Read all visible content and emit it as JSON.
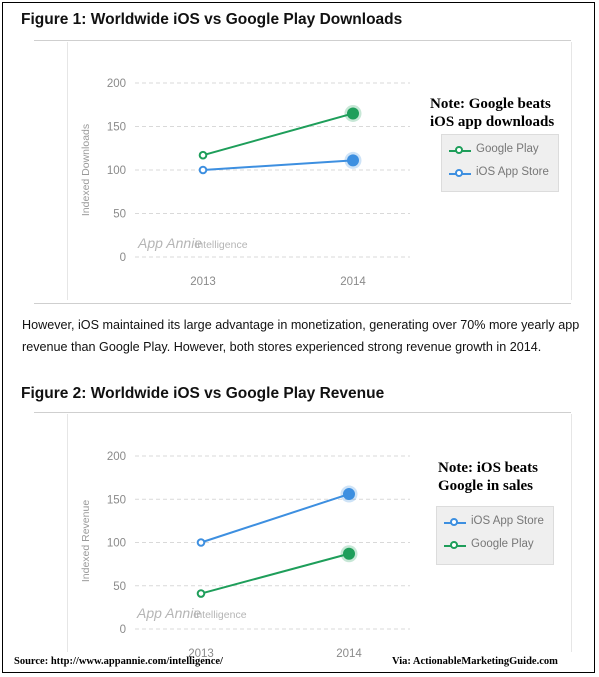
{
  "figure1": {
    "title": "Figure 1: Worldwide iOS vs Google Play Downloads",
    "note": [
      "Note: Google beats",
      "iOS app downloads"
    ],
    "legend": [
      "Google Play",
      "iOS App Store"
    ],
    "watermark_brand": "App Annie",
    "watermark_sub": "intelligence"
  },
  "body_text": "However, iOS maintained its large advantage in monetization, generating over 70% more yearly app revenue than Google Play. However, both stores experienced strong revenue growth in 2014.",
  "figure2": {
    "title": "Figure 2: Worldwide iOS vs Google Play Revenue",
    "note": [
      "Note: iOS beats",
      "Google in sales"
    ],
    "legend": [
      "iOS App Store",
      "Google Play"
    ],
    "watermark_brand": "App Annie",
    "watermark_sub": "intelligence"
  },
  "footer": {
    "source": "Source: http://www.appannie.com/intelligence/",
    "via": "Via: ActionableMarketingGuide.com"
  },
  "colors": {
    "google_play": "#1e9e5a",
    "ios": "#3d8fe0",
    "grid": "#d9d9d9",
    "axis_text": "#8a8a8a"
  },
  "chart_data": [
    {
      "type": "line",
      "title": "Figure 1: Worldwide iOS vs Google Play Downloads",
      "xlabel": "",
      "ylabel": "Indexed Downloads",
      "categories": [
        "2013",
        "2014"
      ],
      "ylim": [
        0,
        200
      ],
      "yticks": [
        0,
        50,
        100,
        150,
        200
      ],
      "grid": true,
      "legend_position": "right",
      "series": [
        {
          "name": "Google Play",
          "values": [
            117,
            165
          ],
          "color": "#1e9e5a"
        },
        {
          "name": "iOS App Store",
          "values": [
            100,
            111
          ],
          "color": "#3d8fe0"
        }
      ]
    },
    {
      "type": "line",
      "title": "Figure 2: Worldwide iOS vs Google Play Revenue",
      "xlabel": "",
      "ylabel": "Indexed Revenue",
      "categories": [
        "2013",
        "2014"
      ],
      "ylim": [
        0,
        200
      ],
      "yticks": [
        0,
        50,
        100,
        150,
        200
      ],
      "grid": true,
      "legend_position": "right",
      "series": [
        {
          "name": "iOS App Store",
          "values": [
            100,
            156
          ],
          "color": "#3d8fe0"
        },
        {
          "name": "Google Play",
          "values": [
            41,
            87
          ],
          "color": "#1e9e5a"
        }
      ]
    }
  ]
}
